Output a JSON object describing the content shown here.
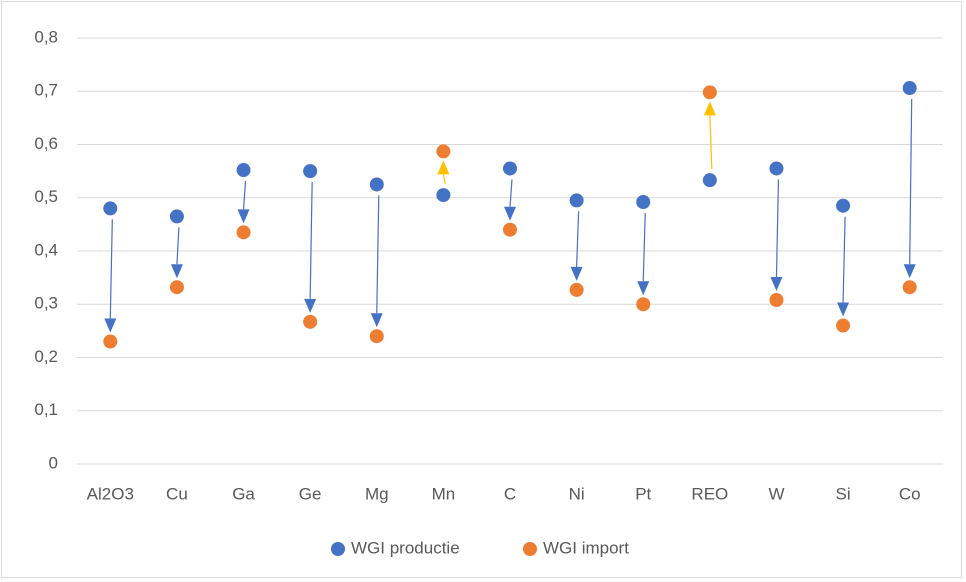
{
  "chart_data": {
    "type": "dot",
    "categories": [
      "Al2O3",
      "Cu",
      "Ga",
      "Ge",
      "Mg",
      "Mn",
      "C",
      "Ni",
      "Pt",
      "REO",
      "W",
      "Si",
      "Co"
    ],
    "series": [
      {
        "name": "WGI productie",
        "color": "#4472c4",
        "values": [
          0.48,
          0.465,
          0.552,
          0.55,
          0.525,
          0.505,
          0.555,
          0.495,
          0.492,
          0.533,
          0.555,
          0.485,
          0.706
        ]
      },
      {
        "name": "WGI import",
        "color": "#ed7d31",
        "values": [
          0.23,
          0.332,
          0.435,
          0.267,
          0.24,
          0.587,
          0.44,
          0.327,
          0.3,
          0.698,
          0.308,
          0.26,
          0.332
        ]
      }
    ],
    "arrow_color_down": "#4472c4",
    "arrow_color_up": "#ffc000",
    "ylim": [
      0,
      0.8
    ],
    "yticks": [
      0,
      {
        "value": 0.1,
        "label": "0,1"
      },
      {
        "value": 0.2,
        "label": "0,2"
      },
      {
        "value": 0.3,
        "label": "0,3"
      },
      {
        "value": 0.4,
        "label": "0,4"
      },
      {
        "value": 0.5,
        "label": "0,5"
      },
      {
        "value": 0.6,
        "label": "0,6"
      },
      {
        "value": 0.7,
        "label": "0,7"
      },
      {
        "value": 0.8,
        "label": "0,8"
      }
    ],
    "grid": true,
    "legend": "bottom"
  }
}
